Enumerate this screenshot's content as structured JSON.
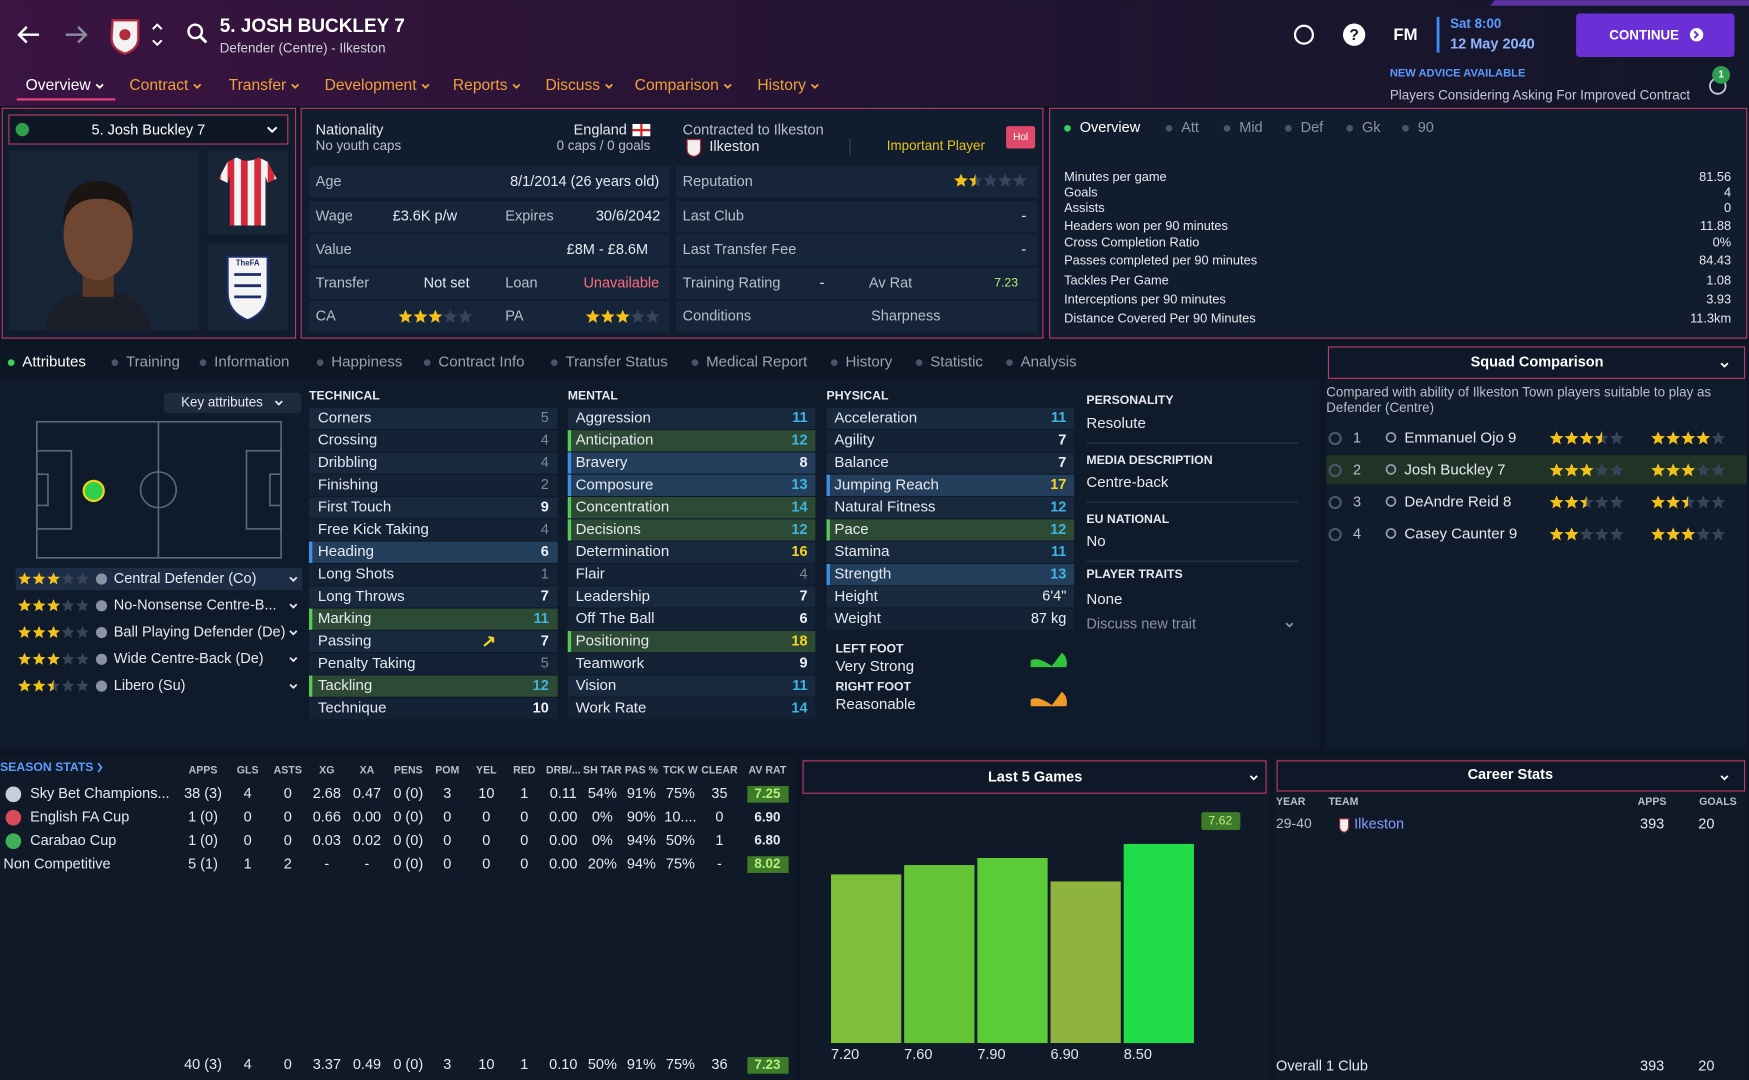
{
  "header": {
    "title": "5. JOSH BUCKLEY 7",
    "subtitle": "Defender (Centre) - Ilkeston",
    "help": "?",
    "logo": "FM",
    "time": "Sat 8:00",
    "date": "12 May 2040",
    "continue": "CONTINUE"
  },
  "nav": {
    "tabs": [
      "Overview",
      "Contract",
      "Transfer",
      "Development",
      "Reports",
      "Discuss",
      "Comparison",
      "History"
    ],
    "active": 0
  },
  "advice": {
    "title": "NEW ADVICE AVAILABLE",
    "text": "Players Considering Asking For Improved Contract",
    "count": 1
  },
  "profile": {
    "selector": "5. Josh Buckley 7",
    "crest": "TheFA"
  },
  "details": {
    "nationality_label": "Nationality",
    "nationality": "England",
    "youth_caps": "No youth caps",
    "caps": "0 caps / 0 goals",
    "contract_label": "Contracted to Ilkeston",
    "club": "Ilkeston",
    "squad_status": "Important Player",
    "hol": "Hol",
    "age_label": "Age",
    "age": "8/1/2014 (26 years old)",
    "reputation_label": "Reputation",
    "reputation_stars": 1.5,
    "wage_label": "Wage",
    "wage": "£3.6K p/w",
    "expires_label": "Expires",
    "expires": "30/6/2042",
    "last_club_label": "Last Club",
    "last_club": "-",
    "value_label": "Value",
    "value": "£8M - £8.6M",
    "last_fee_label": "Last Transfer Fee",
    "last_fee": "-",
    "transfer_label": "Transfer",
    "transfer": "Not set",
    "loan_label": "Loan",
    "loan": "Unavailable",
    "training_label": "Training Rating",
    "training": "-",
    "av_rat_label": "Av Rat",
    "av_rat": "7.23",
    "ca_label": "CA",
    "ca_stars": 3,
    "pa_label": "PA",
    "pa_stars": 3,
    "conditions_label": "Conditions",
    "sharpness_label": "Sharpness"
  },
  "stats_panel": {
    "tabs": [
      "Overview",
      "Att",
      "Mid",
      "Def",
      "Gk",
      "90"
    ],
    "rows": [
      [
        "Minutes per game",
        "81.56"
      ],
      [
        "Goals",
        "4"
      ],
      [
        "Assists",
        "0"
      ],
      [
        "Headers won per 90 minutes",
        "11.88"
      ],
      [
        "Cross Completion Ratio",
        "0%"
      ],
      [
        "Passes completed per 90 minutes",
        "84.43"
      ],
      [
        "Tackles Per Game",
        "1.08"
      ],
      [
        "Interceptions per 90 minutes",
        "3.93"
      ],
      [
        "Distance Covered Per 90 Minutes",
        "11.3km"
      ]
    ]
  },
  "attribute_tabs": [
    "Attributes",
    "Training",
    "Information",
    "Happiness",
    "Contract Info",
    "Transfer Status",
    "Medical Report",
    "History",
    "Statistic",
    "Analysis"
  ],
  "attributes": {
    "key_button": "Key attributes",
    "roles": [
      {
        "name": "Central Defender (Co)",
        "stars": 3
      },
      {
        "name": "No-Nonsense Centre-B...",
        "stars": 3
      },
      {
        "name": "Ball Playing Defender (De)",
        "stars": 3
      },
      {
        "name": "Wide Centre-Back (De)",
        "stars": 3
      },
      {
        "name": "Libero (Su)",
        "stars": 2.5
      }
    ],
    "technical": {
      "title": "TECHNICAL",
      "items": [
        {
          "name": "Corners",
          "value": 5
        },
        {
          "name": "Crossing",
          "value": 4
        },
        {
          "name": "Dribbling",
          "value": 4
        },
        {
          "name": "Finishing",
          "value": 2
        },
        {
          "name": "First Touch",
          "value": 9
        },
        {
          "name": "Free Kick Taking",
          "value": 4
        },
        {
          "name": "Heading",
          "value": 6,
          "highlight": "blue"
        },
        {
          "name": "Long Shots",
          "value": 1
        },
        {
          "name": "Long Throws",
          "value": 7
        },
        {
          "name": "Marking",
          "value": 11,
          "highlight": "green"
        },
        {
          "name": "Passing",
          "value": 7,
          "trend": "up"
        },
        {
          "name": "Penalty Taking",
          "value": 5
        },
        {
          "name": "Tackling",
          "value": 12,
          "highlight": "green"
        },
        {
          "name": "Technique",
          "value": 10
        }
      ]
    },
    "mental": {
      "title": "MENTAL",
      "items": [
        {
          "name": "Aggression",
          "value": 11
        },
        {
          "name": "Anticipation",
          "value": 12,
          "highlight": "green"
        },
        {
          "name": "Bravery",
          "value": 8,
          "highlight": "blue"
        },
        {
          "name": "Composure",
          "value": 13,
          "highlight": "blue"
        },
        {
          "name": "Concentration",
          "value": 14,
          "highlight": "green"
        },
        {
          "name": "Decisions",
          "value": 12,
          "highlight": "green"
        },
        {
          "name": "Determination",
          "value": 16
        },
        {
          "name": "Flair",
          "value": 4
        },
        {
          "name": "Leadership",
          "value": 7
        },
        {
          "name": "Off The Ball",
          "value": 6
        },
        {
          "name": "Positioning",
          "value": 18,
          "highlight": "green"
        },
        {
          "name": "Teamwork",
          "value": 9
        },
        {
          "name": "Vision",
          "value": 11
        },
        {
          "name": "Work Rate",
          "value": 14
        }
      ]
    },
    "physical": {
      "title": "PHYSICAL",
      "items": [
        {
          "name": "Acceleration",
          "value": 11
        },
        {
          "name": "Agility",
          "value": 7
        },
        {
          "name": "Balance",
          "value": 7
        },
        {
          "name": "Jumping Reach",
          "value": 17,
          "highlight": "blue"
        },
        {
          "name": "Natural Fitness",
          "value": 12
        },
        {
          "name": "Pace",
          "value": 12,
          "highlight": "green"
        },
        {
          "name": "Stamina",
          "value": 11
        },
        {
          "name": "Strength",
          "value": 13,
          "highlight": "blue"
        },
        {
          "name": "Height",
          "value": "6'4\""
        },
        {
          "name": "Weight",
          "value": "87 kg"
        }
      ]
    },
    "left_foot_label": "LEFT FOOT",
    "left_foot": "Very Strong",
    "right_foot_label": "RIGHT FOOT",
    "right_foot": "Reasonable",
    "personality_label": "PERSONALITY",
    "personality": "Resolute",
    "media_label": "MEDIA DESCRIPTION",
    "media": "Centre-back",
    "eu_label": "EU NATIONAL",
    "eu": "No",
    "traits_label": "PLAYER TRAITS",
    "traits": "None",
    "discuss_trait": "Discuss new trait"
  },
  "squad": {
    "title": "Squad Comparison",
    "description": [
      "Compared with ability of Ilkeston Town players suitable to play as",
      "Defender (Centre)"
    ],
    "players": [
      {
        "rank": 1,
        "name": "Emmanuel Ojo 9",
        "ca": 3.5,
        "pa": 4
      },
      {
        "rank": 2,
        "name": "Josh Buckley 7",
        "ca": 3,
        "pa": 3
      },
      {
        "rank": 3,
        "name": "DeAndre Reid 8",
        "ca": 2.5,
        "pa": 2.5
      },
      {
        "rank": 4,
        "name": "Casey Caunter 9",
        "ca": 2,
        "pa": 3
      }
    ]
  },
  "season_stats": {
    "title": "SEASON STATS",
    "columns": [
      "APPS",
      "GLS",
      "ASTS",
      "XG",
      "XA",
      "PENS",
      "POM",
      "YEL",
      "RED",
      "DRB/...",
      "SH TAR",
      "PAS %",
      "TCK W",
      "CLEAR",
      "AV RAT"
    ],
    "rows": [
      {
        "competition": "Sky Bet Champions...",
        "icon_color": "#c9ced8",
        "cells": [
          "38 (3)",
          "4",
          "0",
          "2.68",
          "0.47",
          "0 (0)",
          "3",
          "10",
          "1",
          "0.11",
          "54%",
          "91%",
          "75%",
          "35",
          "7.25"
        ]
      },
      {
        "competition": "English FA Cup",
        "icon_color": "#d64a5a",
        "cells": [
          "1 (0)",
          "0",
          "0",
          "0.66",
          "0.00",
          "0 (0)",
          "0",
          "0",
          "0",
          "0.00",
          "0%",
          "90%",
          "10....",
          "0",
          "6.90"
        ]
      },
      {
        "competition": "Carabao Cup",
        "icon_color": "#3fae5a",
        "cells": [
          "1 (0)",
          "0",
          "0",
          "0.03",
          "0.02",
          "0 (0)",
          "0",
          "0",
          "0",
          "0.00",
          "0%",
          "94%",
          "50%",
          "1",
          "6.80"
        ]
      },
      {
        "competition": "Non Competitive",
        "cells": [
          "5 (1)",
          "1",
          "2",
          "-",
          "-",
          "0 (0)",
          "0",
          "0",
          "0",
          "0.00",
          "20%",
          "94%",
          "75%",
          "-",
          "8.02"
        ]
      }
    ],
    "total": [
      "40 (3)",
      "4",
      "0",
      "3.37",
      "0.49",
      "0 (0)",
      "3",
      "10",
      "1",
      "0.10",
      "50%",
      "91%",
      "75%",
      "36",
      "7.23"
    ]
  },
  "chart_data": {
    "type": "bar",
    "title": "Last 5 Games",
    "values": [
      7.2,
      7.6,
      7.9,
      6.9,
      8.5
    ],
    "value_labels": [
      "7.20",
      "7.60",
      "7.90",
      "6.90",
      "8.50"
    ],
    "colors": [
      "#7dbf3a",
      "#63c536",
      "#5bcb37",
      "#8fb43e",
      "#1fdc48"
    ],
    "ylim": [
      0,
      10
    ],
    "annotation": "7.62"
  },
  "career": {
    "title": "Career Stats",
    "columns": [
      "YEAR",
      "TEAM",
      "APPS",
      "GOALS"
    ],
    "rows": [
      {
        "year": "29-40",
        "team": "Ilkeston",
        "apps": 393,
        "goals": 20
      }
    ],
    "total": {
      "label": "Overall 1 Club",
      "apps": 393,
      "goals": 20
    }
  }
}
